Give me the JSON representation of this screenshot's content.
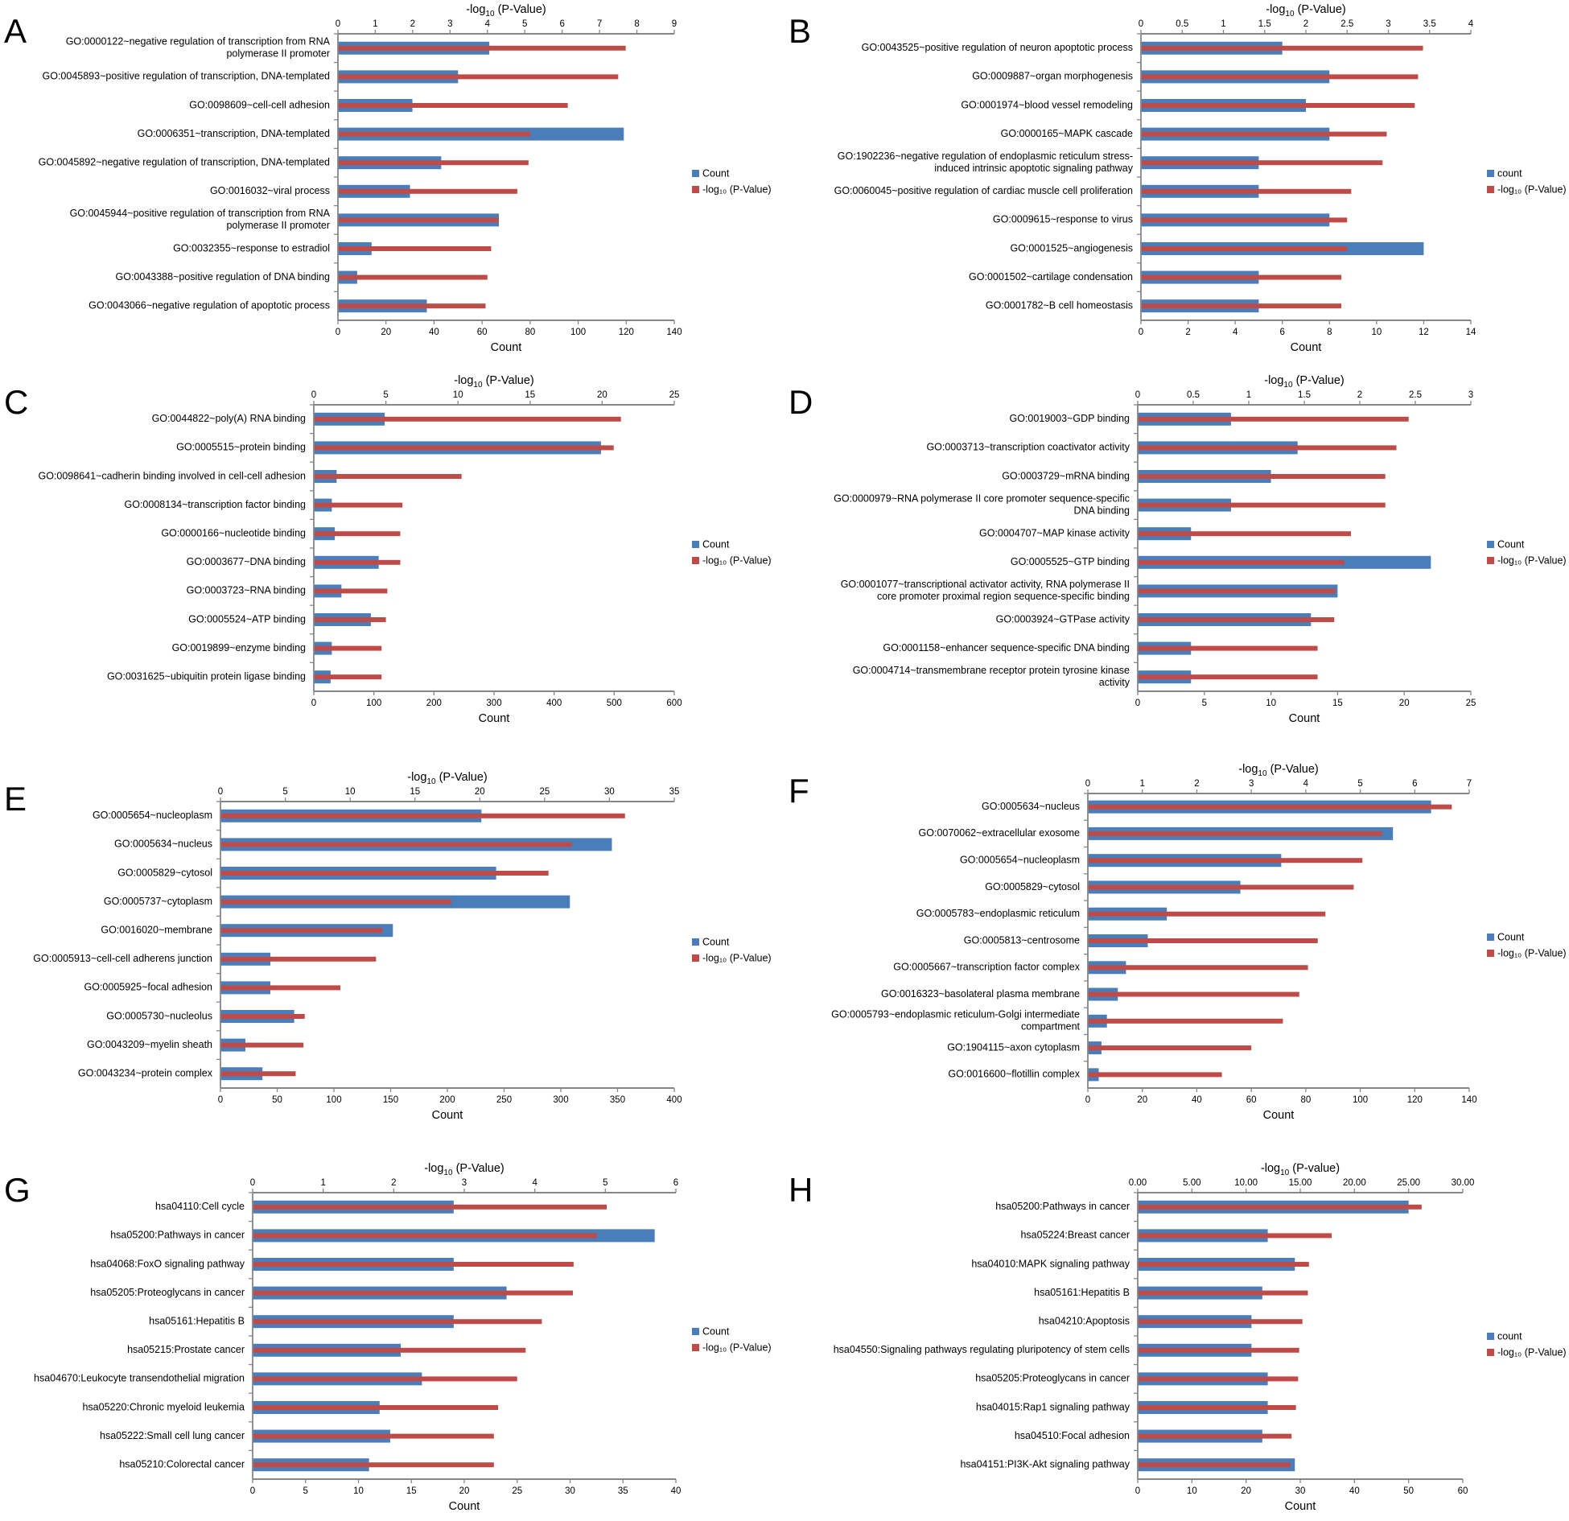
{
  "colors": {
    "count": "#4a7ebb",
    "pvalue": "#be4b48",
    "axis": "#868686"
  },
  "chart_data": [
    {
      "id": "A",
      "type": "bar",
      "letter": "A",
      "xlabel": "Count",
      "x2label_pre": "-log",
      "x2label_sub": "10",
      "x2label_post": " (P-Value)",
      "xlim": [
        0,
        140
      ],
      "xticks": [
        0,
        20,
        40,
        60,
        80,
        100,
        120,
        140
      ],
      "x2lim": [
        0,
        9
      ],
      "x2ticks": [
        0,
        1,
        2,
        3,
        4,
        5,
        6,
        7,
        8,
        9
      ],
      "legend": [
        "Count",
        "-log₁₀ (P-Value)"
      ],
      "categories": [
        [
          "GO:0000122~negative regulation of transcription from RNA",
          "polymerase II promoter"
        ],
        [
          "GO:0045893~positive regulation of transcription, DNA-templated"
        ],
        [
          "GO:0098609~cell-cell adhesion"
        ],
        [
          "GO:0006351~transcription, DNA-templated"
        ],
        [
          "GO:0045892~negative regulation of transcription, DNA-templated"
        ],
        [
          "GO:0016032~viral process"
        ],
        [
          "GO:0045944~positive regulation of transcription from RNA",
          "polymerase II promoter"
        ],
        [
          "GO:0032355~response to estradiol"
        ],
        [
          "GO:0043388~positive regulation of DNA binding"
        ],
        [
          "GO:0043066~negative regulation of apoptotic process"
        ]
      ],
      "count": [
        63,
        50,
        31,
        119,
        43,
        30,
        67,
        14,
        8,
        37
      ],
      "pvalue": [
        7.7,
        7.5,
        6.15,
        5.15,
        5.1,
        4.8,
        4.3,
        4.1,
        4.0,
        3.95
      ]
    },
    {
      "id": "B",
      "type": "bar",
      "letter": "B",
      "xlabel": "Count",
      "x2label_pre": "-log",
      "x2label_sub": "10",
      "x2label_post": " (P-Value)",
      "xlim": [
        0,
        14
      ],
      "xticks": [
        0,
        2,
        4,
        6,
        8,
        10,
        12,
        14
      ],
      "x2lim": [
        0,
        4
      ],
      "x2ticks": [
        0,
        0.5,
        1,
        1.5,
        2,
        2.5,
        3,
        3.5,
        4
      ],
      "legend": [
        "count",
        "-log₁₀ (P-Value)"
      ],
      "categories": [
        [
          "GO:0043525~positive regulation of neuron apoptotic process"
        ],
        [
          "GO:0009887~organ morphogenesis"
        ],
        [
          "GO:0001974~blood vessel remodeling"
        ],
        [
          "GO:0000165~MAPK cascade"
        ],
        [
          "GO:1902236~negative regulation of endoplasmic reticulum stress-",
          "induced intrinsic apoptotic signaling pathway"
        ],
        [
          "GO:0060045~positive regulation of cardiac muscle cell proliferation"
        ],
        [
          "GO:0009615~response to virus"
        ],
        [
          "GO:0001525~angiogenesis"
        ],
        [
          "GO:0001502~cartilage condensation"
        ],
        [
          "GO:0001782~B cell homeostasis"
        ]
      ],
      "count": [
        6,
        8,
        7,
        8,
        5,
        5,
        8,
        12,
        5,
        5
      ],
      "pvalue": [
        3.42,
        3.36,
        3.32,
        2.98,
        2.93,
        2.55,
        2.5,
        2.5,
        2.43,
        2.43
      ]
    },
    {
      "id": "C",
      "type": "bar",
      "letter": "C",
      "xlabel": "Count",
      "x2label_pre": "-log",
      "x2label_sub": "10",
      "x2label_post": " (P-Value)",
      "xlim": [
        0,
        600
      ],
      "xticks": [
        0,
        100,
        200,
        300,
        400,
        500,
        600
      ],
      "x2lim": [
        0,
        25
      ],
      "x2ticks": [
        0,
        5,
        10,
        15,
        20,
        25
      ],
      "legend": [
        "Count",
        "-log₁₀ (P-Value)"
      ],
      "categories": [
        [
          "GO:0044822~poly(A) RNA binding"
        ],
        [
          "GO:0005515~protein binding"
        ],
        [
          "GO:0098641~cadherin binding involved in cell-cell adhesion"
        ],
        [
          "GO:0008134~transcription factor binding"
        ],
        [
          "GO:0000166~nucleotide binding"
        ],
        [
          "GO:0003677~DNA binding"
        ],
        [
          "GO:0003723~RNA binding"
        ],
        [
          "GO:0005524~ATP binding"
        ],
        [
          "GO:0019899~enzyme binding"
        ],
        [
          "GO:0031625~ubiquitin protein ligase binding"
        ]
      ],
      "count": [
        118,
        478,
        38,
        30,
        35,
        108,
        46,
        95,
        30,
        28
      ],
      "pvalue": [
        21.3,
        20.8,
        10.25,
        6.15,
        6.0,
        6.0,
        5.1,
        5.0,
        4.7,
        4.7
      ]
    },
    {
      "id": "D",
      "type": "bar",
      "letter": "D",
      "xlabel": "Count",
      "x2label_pre": "-log",
      "x2label_sub": "10",
      "x2label_post": " (P-Value)",
      "xlim": [
        0,
        25
      ],
      "xticks": [
        0,
        5,
        10,
        15,
        20,
        25
      ],
      "x2lim": [
        0,
        3
      ],
      "x2ticks": [
        0,
        0.5,
        1,
        1.5,
        2,
        2.5,
        3
      ],
      "legend": [
        "Count",
        "-log₁₀ (P-Value)"
      ],
      "categories": [
        [
          "GO:0019003~GDP binding"
        ],
        [
          "GO:0003713~transcription coactivator activity"
        ],
        [
          "GO:0003729~mRNA binding"
        ],
        [
          "GO:0000979~RNA polymerase II core promoter sequence-specific",
          "DNA binding"
        ],
        [
          "GO:0004707~MAP kinase activity"
        ],
        [
          "GO:0005525~GTP binding"
        ],
        [
          "GO:0001077~transcriptional activator activity, RNA polymerase II",
          "core promoter proximal region sequence-specific binding"
        ],
        [
          "GO:0003924~GTPase activity"
        ],
        [
          "GO:0001158~enhancer sequence-specific DNA binding"
        ],
        [
          "GO:0004714~transmembrane receptor protein tyrosine kinase",
          "activity"
        ]
      ],
      "count": [
        7,
        12,
        10,
        7,
        4,
        22,
        15,
        13,
        4,
        4
      ],
      "pvalue": [
        2.44,
        2.33,
        2.23,
        2.23,
        1.92,
        1.86,
        1.78,
        1.77,
        1.62,
        1.62
      ]
    },
    {
      "id": "E",
      "type": "bar",
      "letter": "E",
      "xlabel": "Count",
      "x2label_pre": "-log",
      "x2label_sub": "10",
      "x2label_post": " (P-Value)",
      "xlim": [
        0,
        400
      ],
      "xticks": [
        0,
        50,
        100,
        150,
        200,
        250,
        300,
        350,
        400
      ],
      "x2lim": [
        0,
        35
      ],
      "x2ticks": [
        0,
        5,
        10,
        15,
        20,
        25,
        30,
        35
      ],
      "legend": [
        "Count",
        "-log₁₀ (P-Value)"
      ],
      "categories": [
        [
          "GO:0005654~nucleoplasm"
        ],
        [
          "GO:0005634~nucleus"
        ],
        [
          "GO:0005829~cytosol"
        ],
        [
          "GO:0005737~cytoplasm"
        ],
        [
          "GO:0016020~membrane"
        ],
        [
          "GO:0005913~cell-cell adherens junction"
        ],
        [
          "GO:0005925~focal adhesion"
        ],
        [
          "GO:0005730~nucleolus"
        ],
        [
          "GO:0043209~myelin sheath"
        ],
        [
          "GO:0043234~protein complex"
        ]
      ],
      "count": [
        230,
        345,
        243,
        308,
        152,
        44,
        44,
        65,
        22,
        37
      ],
      "pvalue": [
        31.2,
        27.1,
        25.3,
        17.8,
        12.5,
        12.0,
        9.25,
        6.5,
        6.4,
        5.8
      ]
    },
    {
      "id": "F",
      "type": "bar",
      "letter": "F",
      "xlabel": "Count",
      "x2label_pre": "-log",
      "x2label_sub": "10",
      "x2label_post": " (P-Value)",
      "xlim": [
        0,
        140
      ],
      "xticks": [
        0,
        20,
        40,
        60,
        80,
        100,
        120,
        140
      ],
      "x2lim": [
        0,
        7
      ],
      "x2ticks": [
        0,
        1,
        2,
        3,
        4,
        5,
        6,
        7
      ],
      "legend": [
        "Count",
        "-log₁₀ (P-Value)"
      ],
      "categories": [
        [
          "GO:0005634~nucleus"
        ],
        [
          "GO:0070062~extracellular exosome"
        ],
        [
          "GO:0005654~nucleoplasm"
        ],
        [
          "GO:0005829~cytosol"
        ],
        [
          "GO:0005783~endoplasmic reticulum"
        ],
        [
          "GO:0005813~centrosome"
        ],
        [
          "GO:0005667~transcription factor complex"
        ],
        [
          "GO:0016323~basolateral plasma membrane"
        ],
        [
          "GO:0005793~endoplasmic reticulum-Golgi intermediate",
          "compartment"
        ],
        [
          "GO:1904115~axon cytoplasm"
        ],
        [
          "GO:0016600~flotillin complex"
        ]
      ],
      "count": [
        126,
        112,
        71,
        56,
        29,
        22,
        14,
        11,
        7,
        5,
        4
      ],
      "pvalue": [
        6.68,
        5.4,
        5.04,
        4.88,
        4.36,
        4.22,
        4.04,
        3.88,
        3.58,
        3.0,
        2.46
      ]
    },
    {
      "id": "G",
      "type": "bar",
      "letter": "G",
      "xlabel": "Count",
      "x2label_pre": "-log",
      "x2label_sub": "10",
      "x2label_post": " (P-Value)",
      "xlim": [
        0,
        40
      ],
      "xticks": [
        0,
        5,
        10,
        15,
        20,
        25,
        30,
        35,
        40
      ],
      "x2lim": [
        0,
        6
      ],
      "x2ticks": [
        0,
        1,
        2,
        3,
        4,
        5,
        6
      ],
      "legend": [
        "Count",
        "-log₁₀ (P-Value)"
      ],
      "categories": [
        [
          "hsa04110:Cell cycle"
        ],
        [
          "hsa05200:Pathways in cancer"
        ],
        [
          "hsa04068:FoxO signaling pathway"
        ],
        [
          "hsa05205:Proteoglycans in cancer"
        ],
        [
          "hsa05161:Hepatitis B"
        ],
        [
          "hsa05215:Prostate cancer"
        ],
        [
          "hsa04670:Leukocyte transendothelial migration"
        ],
        [
          "hsa05220:Chronic myeloid leukemia"
        ],
        [
          "hsa05222:Small cell lung cancer"
        ],
        [
          "hsa05210:Colorectal cancer"
        ]
      ],
      "count": [
        19,
        38,
        19,
        24,
        19,
        14,
        16,
        12,
        13,
        11
      ],
      "pvalue": [
        5.02,
        4.88,
        4.55,
        4.54,
        4.1,
        3.87,
        3.75,
        3.48,
        3.42,
        3.42
      ]
    },
    {
      "id": "H",
      "type": "bar",
      "letter": "H",
      "xlabel": "Count",
      "x2label_pre": "-log",
      "x2label_sub": "10",
      "x2label_post": " (P-value)",
      "xlim": [
        0,
        60
      ],
      "xticks": [
        0,
        10,
        20,
        30,
        40,
        50,
        60
      ],
      "x2lim": [
        0,
        30
      ],
      "x2ticks": [
        0,
        5,
        10,
        15,
        20,
        25,
        30
      ],
      "x2tick_labels": [
        "0.00",
        "5.00",
        "10.00",
        "15.00",
        "20.00",
        "25.00",
        "30.00"
      ],
      "legend": [
        "count",
        "-log₁₀ (P-Value)"
      ],
      "categories": [
        [
          "hsa05200:Pathways in cancer"
        ],
        [
          "hsa05224:Breast cancer"
        ],
        [
          "hsa04010:MAPK signaling pathway"
        ],
        [
          "hsa05161:Hepatitis B"
        ],
        [
          "hsa04210:Apoptosis"
        ],
        [
          "hsa04550:Signaling pathways regulating pluripotency of stem cells"
        ],
        [
          "hsa05205:Proteoglycans in cancer"
        ],
        [
          "hsa04015:Rap1 signaling pathway"
        ],
        [
          "hsa04510:Focal adhesion"
        ],
        [
          "hsa04151:PI3K-Akt signaling pathway"
        ]
      ],
      "count": [
        50,
        24,
        29,
        23,
        21,
        21,
        24,
        24,
        23,
        29
      ],
      "pvalue": [
        26.2,
        17.9,
        15.8,
        15.7,
        15.2,
        14.9,
        14.8,
        14.6,
        14.2,
        14.1
      ]
    }
  ]
}
